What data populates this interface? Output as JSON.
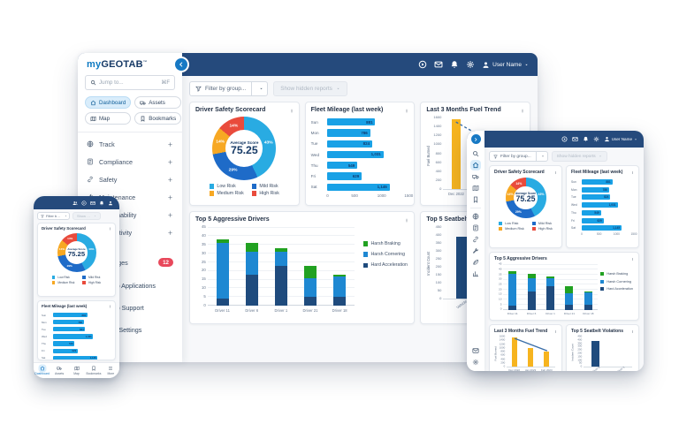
{
  "brand": {
    "prefix": "my",
    "name": "GEOTAB",
    "tm": "™"
  },
  "topbar": {
    "user_name": "User Name"
  },
  "sidebar": {
    "search": {
      "placeholder": "Jump to...",
      "shortcut": "⌘F"
    },
    "pills": [
      {
        "label": "Dashboard",
        "active": true
      },
      {
        "label": "Assets",
        "active": false
      },
      {
        "label": "Map",
        "active": false
      },
      {
        "label": "Bookmarks",
        "active": false
      }
    ],
    "nav": [
      {
        "label": "Track"
      },
      {
        "label": "Compliance"
      },
      {
        "label": "Safety"
      },
      {
        "label": "Maintenance"
      },
      {
        "label": "Sustainability"
      },
      {
        "label": "Productivity"
      }
    ],
    "messages": {
      "label": "Messages",
      "badge": "12"
    },
    "links": [
      {
        "label": "Geotab Applications"
      },
      {
        "label": "Geotab Support"
      },
      {
        "label": "Admin Settings"
      }
    ]
  },
  "filters": {
    "group": "Filter by group...",
    "hidden_reports": "Show hidden reports"
  },
  "phone": {
    "nav": [
      {
        "label": "Dashboard",
        "active": true
      },
      {
        "label": "Assets",
        "active": false
      },
      {
        "label": "Map",
        "active": false
      },
      {
        "label": "Bookmarks",
        "active": false
      },
      {
        "label": "More",
        "active": false
      }
    ]
  },
  "icons_used": [
    "help-icon",
    "mail-icon",
    "bell-icon",
    "gear-icon",
    "user-icon",
    "chevron-down-icon",
    "chevron-left-icon",
    "chevron-right-icon",
    "search-icon",
    "home-icon",
    "assets-icon",
    "map-icon",
    "bookmark-icon",
    "plus-icon",
    "funnel-icon",
    "kebab-menu-icon",
    "globe-icon",
    "document-icon",
    "link-icon",
    "wrench-icon",
    "leaf-icon",
    "chart-icon",
    "apps-grid-icon",
    "lifebuoy-icon",
    "people-icon",
    "menu-icon"
  ],
  "colors": {
    "navy_bar": "#254a7c",
    "accent_blue": "#1779c4",
    "badge_red": "#e8485b",
    "low_risk": "#29abe2",
    "mild_risk": "#1e6bc8",
    "medium_risk": "#f7a823",
    "high_risk": "#e94b3c",
    "harsh_braking": "#21a121",
    "harsh_cornering": "#1e88d2",
    "hard_acceleration": "#1f4b7d",
    "fuel_bar": "#f6b41f",
    "fleet_bar": "#19a1e6"
  },
  "charts": {
    "scorecard": {
      "type": "pie",
      "title": "Driver Safety Scorecard",
      "center_label": "Average Score",
      "center_value": "75.25",
      "segments": [
        {
          "label": "Low Risk",
          "value": 43,
          "color": "#29abe2"
        },
        {
          "label": "Mild Risk",
          "value": 29,
          "color": "#1e6bc8"
        },
        {
          "label": "Medium Risk",
          "value": 14,
          "color": "#f7a823"
        },
        {
          "label": "High Risk",
          "value": 14,
          "color": "#e94b3c"
        }
      ]
    },
    "fleet_mileage": {
      "type": "bar",
      "title": "Fleet Mileage (last week)",
      "categories": [
        "Sun",
        "Mon",
        "Tue",
        "Wed",
        "Thu",
        "Fri",
        "Sat"
      ],
      "values": [
        881,
        786,
        824,
        1031,
        549,
        629,
        1145
      ],
      "labels": [
        "881",
        "786",
        "824",
        "1,031",
        "549",
        "629",
        "1,145"
      ],
      "xmax": 1500,
      "xticks": [
        "0",
        "500",
        "1000",
        "1500"
      ],
      "color": "#19a1e6"
    },
    "fuel_trend": {
      "type": "bar",
      "title": "Last 3 Months Fuel Trend",
      "ylabel": "Fuel Burned",
      "categories": [
        "Dec 2022",
        "Jan 2023",
        "Feb 2023"
      ],
      "values": [
        1550,
        1000,
        820
      ],
      "trend": [
        1500,
        1170,
        840
      ],
      "ymax": 1600,
      "ystep": 200,
      "bar_color": "#f6b41f",
      "line_color": "#3a6ea8"
    },
    "aggressive": {
      "type": "bar",
      "title": "Top 5 Aggressive Drivers",
      "categories": [
        "Driver 11",
        "Driver 6",
        "Driver 1",
        "Driver 21",
        "Driver 18"
      ],
      "ymax": 45,
      "ystep": 5,
      "series": [
        {
          "name": "Harsh Braking",
          "color": "#21a121",
          "values": [
            2,
            5,
            2,
            7,
            1
          ]
        },
        {
          "name": "Harsh Cornering",
          "color": "#1e88d2",
          "values": [
            32,
            13,
            8,
            11,
            12
          ]
        },
        {
          "name": "Hard Acceleration",
          "color": "#1f4b7d",
          "values": [
            4,
            18,
            23,
            5,
            5
          ]
        }
      ]
    },
    "seatbelt": {
      "type": "bar",
      "title": "Top 5 Seatbelt Violations",
      "ylabel": "Incident Count",
      "categories": [
        "Vehicle 8",
        "Vehicle 3"
      ],
      "values": [
        390,
        null
      ],
      "ymax": 450,
      "ystep": 50,
      "color": "#1f4b7d"
    }
  }
}
